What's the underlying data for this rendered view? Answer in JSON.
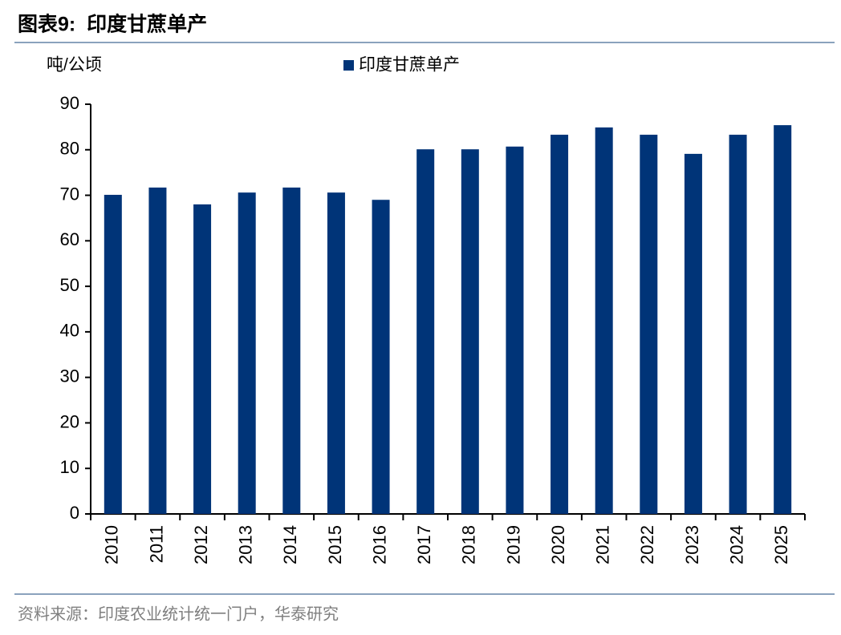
{
  "chart_data": {
    "type": "bar",
    "title": "图表9:  印度甘蔗单产",
    "y_label": "吨/公顷",
    "source": "资料来源：印度农业统计统一门户，华泰研究",
    "categories": [
      "2010",
      "2011",
      "2012",
      "2013",
      "2014",
      "2015",
      "2016",
      "2017",
      "2018",
      "2019",
      "2020",
      "2021",
      "2022",
      "2023",
      "2024",
      "2025"
    ],
    "series": [
      {
        "name": "印度甘蔗单产",
        "color": "#003478",
        "values": [
          70.1,
          71.7,
          68.0,
          70.6,
          71.7,
          70.6,
          69.0,
          80.1,
          80.1,
          80.7,
          83.3,
          84.9,
          83.3,
          79.1,
          83.3,
          85.4
        ]
      }
    ],
    "ylim": [
      0,
      90
    ],
    "yticks": [
      0,
      10,
      20,
      30,
      40,
      50,
      60,
      70,
      80,
      90
    ],
    "grid": false
  }
}
